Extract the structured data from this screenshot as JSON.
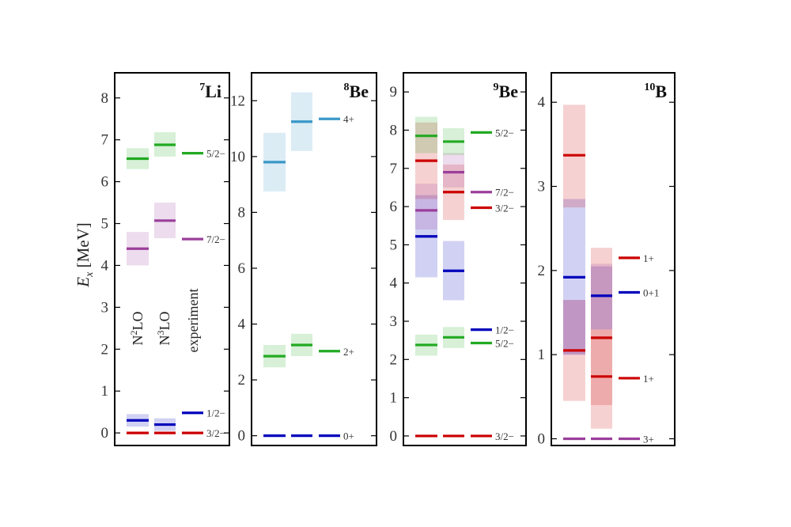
{
  "figure": {
    "ylabel": {
      "symbol": "E",
      "subscript": "x",
      "unit": " [MeV]"
    },
    "column_labels": [
      {
        "base": "N",
        "sup": "2",
        "rest": "LO"
      },
      {
        "base": "N",
        "sup": "3",
        "rest": "LO"
      },
      {
        "base": "experiment",
        "sup": "",
        "rest": ""
      }
    ]
  },
  "chart_data": [
    {
      "type": "level-scheme",
      "nucleus": {
        "mass": "7",
        "symbol": "Li"
      },
      "ylim": [
        -0.3,
        8.6
      ],
      "yticks": [
        0,
        1,
        2,
        3,
        4,
        5,
        6,
        7,
        8
      ],
      "columns": [
        "N2LO",
        "N3LO",
        "experiment"
      ],
      "levels": [
        {
          "label": "3/2−",
          "color": "#cc0000",
          "values": [
            0,
            0,
            0
          ],
          "bands": [
            [
              0,
              0
            ],
            [
              0,
              0
            ],
            null
          ]
        },
        {
          "label": "1/2−",
          "color": "#0000bb",
          "values": [
            0.3,
            0.2,
            0.48
          ],
          "bands": [
            [
              0.15,
              0.45
            ],
            [
              0.05,
              0.35
            ],
            null
          ]
        },
        {
          "label": "7/2−",
          "color": "#9b3f9b",
          "values": [
            4.4,
            5.07,
            4.63
          ],
          "bands": [
            [
              4.0,
              4.8
            ],
            [
              4.65,
              5.5
            ],
            null
          ]
        },
        {
          "label": "5/2−",
          "color": "#22aa22",
          "values": [
            6.55,
            6.88,
            6.68
          ],
          "bands": [
            [
              6.3,
              6.8
            ],
            [
              6.6,
              7.18
            ],
            null
          ]
        }
      ]
    },
    {
      "type": "level-scheme",
      "nucleus": {
        "mass": "8",
        "symbol": "Be"
      },
      "ylim": [
        -0.35,
        13.0
      ],
      "yticks": [
        0,
        2,
        4,
        6,
        8,
        10,
        12
      ],
      "columns": [
        "N2LO",
        "N3LO",
        "experiment"
      ],
      "levels": [
        {
          "label": "0+",
          "color": "#0000bb",
          "values": [
            0,
            0,
            0
          ],
          "bands": [
            [
              0,
              0
            ],
            [
              0,
              0
            ],
            null
          ]
        },
        {
          "label": "2+",
          "color": "#22aa22",
          "values": [
            2.85,
            3.25,
            3.03
          ],
          "bands": [
            [
              2.45,
              3.25
            ],
            [
              2.85,
              3.65
            ],
            null
          ]
        },
        {
          "label": "4+",
          "color": "#3a98c8",
          "values": [
            9.8,
            11.25,
            11.35
          ],
          "bands": [
            [
              8.75,
              10.85
            ],
            [
              10.2,
              12.3
            ],
            null
          ]
        }
      ]
    },
    {
      "type": "level-scheme",
      "nucleus": {
        "mass": "9",
        "symbol": "Be"
      },
      "ylim": [
        -0.25,
        9.5
      ],
      "yticks": [
        0,
        1,
        2,
        3,
        4,
        5,
        6,
        7,
        8,
        9
      ],
      "columns": [
        "N2LO",
        "N3LO",
        "experiment"
      ],
      "levels": [
        {
          "label": "3/2−",
          "color": "#cc0000",
          "values": [
            0,
            0,
            0
          ],
          "bands": [
            [
              0,
              0
            ],
            [
              0,
              0
            ],
            null
          ]
        },
        {
          "label": "5/2−",
          "color": "#22aa22",
          "values": [
            2.38,
            2.58,
            2.43
          ],
          "bands": [
            [
              2.1,
              2.65
            ],
            [
              2.3,
              2.85
            ],
            null
          ]
        },
        {
          "label": "1/2−",
          "color": "#0000bb",
          "values": [
            5.22,
            4.32,
            2.78
          ],
          "bands": [
            [
              4.15,
              6.3
            ],
            [
              3.55,
              5.1
            ],
            null
          ]
        },
        {
          "label": "3/2−",
          "color": "#cc0000",
          "values": [
            7.2,
            6.38,
            5.97
          ],
          "bands": [
            [
              6.2,
              8.2
            ],
            [
              5.65,
              7.1
            ],
            null
          ]
        },
        {
          "label": "7/2−",
          "color": "#9b3f9b",
          "values": [
            5.9,
            6.9,
            6.38
          ],
          "bands": [
            [
              5.4,
              6.6
            ],
            [
              6.5,
              7.4
            ],
            null
          ]
        },
        {
          "label": "5/2−",
          "color": "#22aa22",
          "values": [
            7.85,
            7.7,
            7.94
          ],
          "bands": [
            [
              7.4,
              8.35
            ],
            [
              7.35,
              8.05
            ],
            null
          ]
        }
      ]
    },
    {
      "type": "level-scheme",
      "nucleus": {
        "mass": "10",
        "symbol": "B"
      },
      "ylim": [
        -0.08,
        4.35
      ],
      "yticks": [
        0,
        1,
        2,
        3,
        4
      ],
      "columns": [
        "N2LO",
        "N3LO",
        "experiment"
      ],
      "levels": [
        {
          "label": "3+",
          "color": "#9b3f9b",
          "values": [
            0,
            0,
            0
          ],
          "bands": [
            [
              0,
              0
            ],
            [
              0,
              0
            ],
            null
          ]
        },
        {
          "label": "1+",
          "color": "#cc0000",
          "values": [
            1.05,
            0.74,
            0.72
          ],
          "bands": [
            [
              0.45,
              1.65
            ],
            [
              0.12,
              1.3
            ],
            null
          ]
        },
        {
          "label": "0+1",
          "color": "#0000bb",
          "values": [
            1.92,
            1.7,
            1.74
          ],
          "bands": [
            [
              1.0,
              2.85
            ],
            [
              1.3,
              2.05
            ],
            null
          ]
        },
        {
          "label": "1+",
          "color": "#cc0000",
          "values": [
            3.37,
            1.2,
            2.15
          ],
          "bands": [
            [
              2.75,
              3.97
            ],
            [
              0.4,
              2.27
            ],
            null
          ]
        },
        {
          "label": "",
          "color": "#9b3f9b",
          "values": [
            1.3,
            1.7,
            null
          ],
          "bands": [
            [
              1.0,
              1.65
            ],
            [
              1.3,
              2.08
            ],
            null
          ]
        }
      ]
    }
  ]
}
